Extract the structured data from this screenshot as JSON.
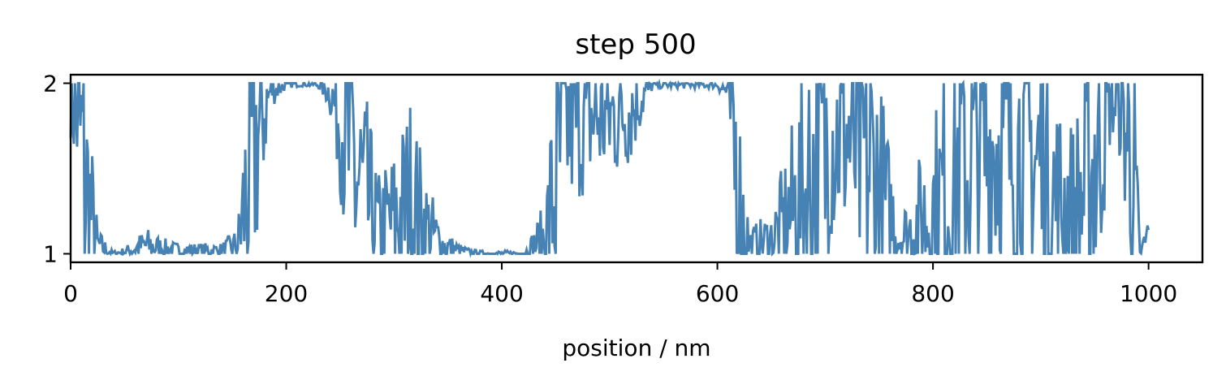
{
  "chart_data": {
    "type": "line",
    "title": "step 500",
    "xlabel": "position / nm",
    "ylabel": "",
    "xlim": [
      0,
      1050
    ],
    "ylim": [
      0.95,
      2.05
    ],
    "xticks": [
      0,
      200,
      400,
      600,
      800,
      1000
    ],
    "yticks": [
      1,
      2
    ],
    "grid": false,
    "series": [
      {
        "color": "#4682b4",
        "anchors": [
          [
            0,
            1.9
          ],
          [
            8,
            1.75
          ],
          [
            15,
            1.35
          ],
          [
            25,
            1.05
          ],
          [
            40,
            1.0
          ],
          [
            55,
            1.02
          ],
          [
            70,
            1.05
          ],
          [
            85,
            1.03
          ],
          [
            100,
            1.02
          ],
          [
            120,
            1.02
          ],
          [
            140,
            1.02
          ],
          [
            155,
            1.05
          ],
          [
            170,
            1.6
          ],
          [
            185,
            1.95
          ],
          [
            200,
            1.99
          ],
          [
            215,
            2.0
          ],
          [
            230,
            1.99
          ],
          [
            240,
            1.95
          ],
          [
            250,
            1.8
          ],
          [
            260,
            1.55
          ],
          [
            270,
            1.35
          ],
          [
            285,
            1.15
          ],
          [
            300,
            1.2
          ],
          [
            315,
            1.3
          ],
          [
            330,
            1.15
          ],
          [
            345,
            1.05
          ],
          [
            360,
            1.02
          ],
          [
            380,
            1.0
          ],
          [
            400,
            1.0
          ],
          [
            420,
            1.0
          ],
          [
            440,
            1.1
          ],
          [
            450,
            1.4
          ],
          [
            460,
            1.75
          ],
          [
            480,
            1.8
          ],
          [
            500,
            1.8
          ],
          [
            520,
            1.85
          ],
          [
            540,
            1.99
          ],
          [
            560,
            1.99
          ],
          [
            580,
            1.99
          ],
          [
            600,
            1.99
          ],
          [
            610,
            1.95
          ],
          [
            620,
            1.3
          ],
          [
            630,
            1.05
          ],
          [
            650,
            1.08
          ],
          [
            665,
            1.2
          ],
          [
            680,
            1.35
          ],
          [
            695,
            1.5
          ],
          [
            705,
            1.7
          ],
          [
            720,
            1.7
          ],
          [
            740,
            1.5
          ],
          [
            760,
            1.2
          ],
          [
            775,
            1.1
          ],
          [
            790,
            1.2
          ],
          [
            805,
            1.3
          ],
          [
            820,
            1.45
          ],
          [
            840,
            1.6
          ],
          [
            860,
            1.65
          ],
          [
            880,
            1.6
          ],
          [
            900,
            1.5
          ],
          [
            915,
            1.3
          ],
          [
            930,
            1.25
          ],
          [
            945,
            1.4
          ],
          [
            955,
            1.65
          ],
          [
            965,
            1.9
          ],
          [
            975,
            1.85
          ],
          [
            985,
            1.5
          ],
          [
            992,
            1.0
          ],
          [
            1000,
            1.1
          ]
        ]
      }
    ]
  }
}
